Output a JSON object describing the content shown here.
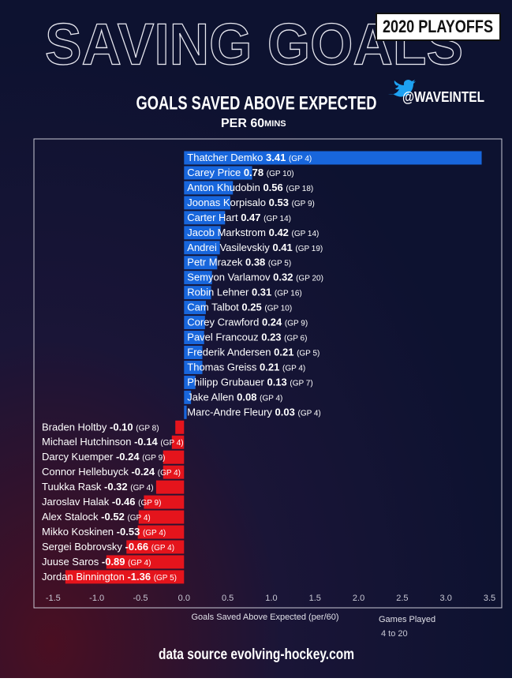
{
  "chart_data": {
    "type": "bar",
    "orientation": "horizontal",
    "badge": "2020 PLAYOFFS",
    "title": "SAVING GOALS",
    "subtitle": "GOALS SAVED ABOVE EXPECTED",
    "subtitle2": "PER 60",
    "subtitle2_suffix": "MINS",
    "handle": "@WAVEINTEL",
    "x_label": "Goals Saved Above Expected (per/60)",
    "legend_title": "Games Played",
    "legend_range": "4 to 20",
    "source": "data source evolving-hockey.com",
    "color": "#1866dc",
    "negative_color": "#e5141c",
    "categories": [
      "Thatcher Demko",
      "Carey Price",
      "Anton Khudobin",
      "Joonas Korpisalo",
      "Carter Hart",
      "Jacob Markstrom",
      "Andrei Vasilevskiy",
      "Petr Mrazek",
      "Semyon Varlamov",
      "Robin Lehner",
      "Cam Talbot",
      "Corey Crawford",
      "Pavel Francouz",
      "Frederik Andersen",
      "Thomas Greiss",
      "Philipp Grubauer",
      "Jake Allen",
      "Marc-Andre Fleury",
      "Braden Holtby",
      "Michael Hutchinson",
      "Darcy Kuemper",
      "Connor Hellebuyck",
      "Tuukka Rask",
      "Jaroslav Halak",
      "Alex Stalock",
      "Mikko Koskinen",
      "Sergei Bobrovsky",
      "Juuse Saros",
      "Jordan Binnington"
    ],
    "values": [
      3.41,
      0.78,
      0.56,
      0.53,
      0.47,
      0.42,
      0.41,
      0.38,
      0.32,
      0.31,
      0.25,
      0.24,
      0.23,
      0.21,
      0.21,
      0.13,
      0.08,
      0.03,
      -0.1,
      -0.14,
      -0.24,
      -0.24,
      -0.32,
      -0.46,
      -0.52,
      -0.53,
      -0.66,
      -0.89,
      -1.36
    ],
    "value_labels": [
      "3.41",
      "0.78",
      "0.56",
      "0.53",
      "0.47",
      "0.42",
      "0.41",
      "0.38",
      "0.32",
      "0.31",
      "0.25",
      "0.24",
      "0.23",
      "0.21",
      "0.21",
      "0.13",
      "0.08",
      "0.03",
      "-0.10",
      "-0.14",
      "-0.24",
      "-0.24",
      "-0.32",
      "-0.46",
      "-0.52",
      "-0.53",
      "-0.66",
      "-0.89",
      "-1.36"
    ],
    "gp_labels": [
      "(GP 4)",
      "(GP 10)",
      "(GP 18)",
      "(GP 9)",
      "(GP 14)",
      "(GP 14)",
      "(GP 19)",
      "(GP 5)",
      "(GP 20)",
      "(GP 16)",
      "(GP 10)",
      "(GP 9)",
      "(GP 6)",
      "(GP 5)",
      "(GP 4)",
      "(GP 7)",
      "(GP 4)",
      "(GP 4)",
      "(GP 8)",
      "(GP 4)",
      "(GP 9)",
      "(GP 4)",
      "(GP 4)",
      "(GP 9)",
      "(GP 4)",
      "(GP 4)",
      "(GP 4)",
      "(GP 4)",
      "(GP 5)"
    ],
    "xlim": [
      -1.72,
      3.64
    ],
    "xticks": [
      -1.5,
      {
        "value": -1.0,
        "label": "-1.0"
      },
      -0.5,
      {
        "value": 0,
        "label": "0.0"
      },
      0.5,
      {
        "value": 1,
        "label": "1.0"
      },
      1.5,
      {
        "value": 2,
        "label": "2.0"
      },
      2.5,
      {
        "value": 3,
        "label": "3.0"
      },
      3.5
    ]
  }
}
